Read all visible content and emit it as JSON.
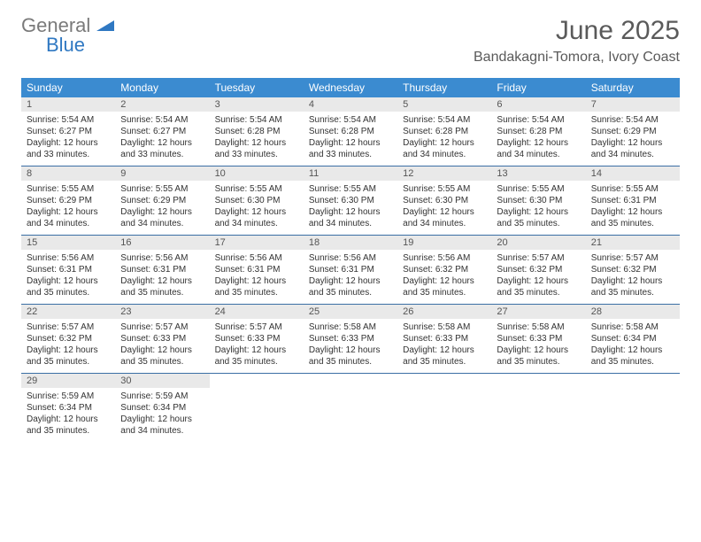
{
  "logo": {
    "general": "General",
    "blue": "Blue"
  },
  "title": "June 2025",
  "location": "Bandakagni-Tomora, Ivory Coast",
  "colors": {
    "header_bg": "#3b8bd0",
    "header_text": "#ffffff",
    "daynum_bg": "#e9e9e9",
    "border": "#3b6fa5",
    "logo_blue": "#2f78c2",
    "logo_gray": "#7a7a7a"
  },
  "day_names": [
    "Sunday",
    "Monday",
    "Tuesday",
    "Wednesday",
    "Thursday",
    "Friday",
    "Saturday"
  ],
  "weeks": [
    [
      {
        "n": "1",
        "sr": "Sunrise: 5:54 AM",
        "ss": "Sunset: 6:27 PM",
        "dl": "Daylight: 12 hours and 33 minutes."
      },
      {
        "n": "2",
        "sr": "Sunrise: 5:54 AM",
        "ss": "Sunset: 6:27 PM",
        "dl": "Daylight: 12 hours and 33 minutes."
      },
      {
        "n": "3",
        "sr": "Sunrise: 5:54 AM",
        "ss": "Sunset: 6:28 PM",
        "dl": "Daylight: 12 hours and 33 minutes."
      },
      {
        "n": "4",
        "sr": "Sunrise: 5:54 AM",
        "ss": "Sunset: 6:28 PM",
        "dl": "Daylight: 12 hours and 33 minutes."
      },
      {
        "n": "5",
        "sr": "Sunrise: 5:54 AM",
        "ss": "Sunset: 6:28 PM",
        "dl": "Daylight: 12 hours and 34 minutes."
      },
      {
        "n": "6",
        "sr": "Sunrise: 5:54 AM",
        "ss": "Sunset: 6:28 PM",
        "dl": "Daylight: 12 hours and 34 minutes."
      },
      {
        "n": "7",
        "sr": "Sunrise: 5:54 AM",
        "ss": "Sunset: 6:29 PM",
        "dl": "Daylight: 12 hours and 34 minutes."
      }
    ],
    [
      {
        "n": "8",
        "sr": "Sunrise: 5:55 AM",
        "ss": "Sunset: 6:29 PM",
        "dl": "Daylight: 12 hours and 34 minutes."
      },
      {
        "n": "9",
        "sr": "Sunrise: 5:55 AM",
        "ss": "Sunset: 6:29 PM",
        "dl": "Daylight: 12 hours and 34 minutes."
      },
      {
        "n": "10",
        "sr": "Sunrise: 5:55 AM",
        "ss": "Sunset: 6:30 PM",
        "dl": "Daylight: 12 hours and 34 minutes."
      },
      {
        "n": "11",
        "sr": "Sunrise: 5:55 AM",
        "ss": "Sunset: 6:30 PM",
        "dl": "Daylight: 12 hours and 34 minutes."
      },
      {
        "n": "12",
        "sr": "Sunrise: 5:55 AM",
        "ss": "Sunset: 6:30 PM",
        "dl": "Daylight: 12 hours and 34 minutes."
      },
      {
        "n": "13",
        "sr": "Sunrise: 5:55 AM",
        "ss": "Sunset: 6:30 PM",
        "dl": "Daylight: 12 hours and 35 minutes."
      },
      {
        "n": "14",
        "sr": "Sunrise: 5:55 AM",
        "ss": "Sunset: 6:31 PM",
        "dl": "Daylight: 12 hours and 35 minutes."
      }
    ],
    [
      {
        "n": "15",
        "sr": "Sunrise: 5:56 AM",
        "ss": "Sunset: 6:31 PM",
        "dl": "Daylight: 12 hours and 35 minutes."
      },
      {
        "n": "16",
        "sr": "Sunrise: 5:56 AM",
        "ss": "Sunset: 6:31 PM",
        "dl": "Daylight: 12 hours and 35 minutes."
      },
      {
        "n": "17",
        "sr": "Sunrise: 5:56 AM",
        "ss": "Sunset: 6:31 PM",
        "dl": "Daylight: 12 hours and 35 minutes."
      },
      {
        "n": "18",
        "sr": "Sunrise: 5:56 AM",
        "ss": "Sunset: 6:31 PM",
        "dl": "Daylight: 12 hours and 35 minutes."
      },
      {
        "n": "19",
        "sr": "Sunrise: 5:56 AM",
        "ss": "Sunset: 6:32 PM",
        "dl": "Daylight: 12 hours and 35 minutes."
      },
      {
        "n": "20",
        "sr": "Sunrise: 5:57 AM",
        "ss": "Sunset: 6:32 PM",
        "dl": "Daylight: 12 hours and 35 minutes."
      },
      {
        "n": "21",
        "sr": "Sunrise: 5:57 AM",
        "ss": "Sunset: 6:32 PM",
        "dl": "Daylight: 12 hours and 35 minutes."
      }
    ],
    [
      {
        "n": "22",
        "sr": "Sunrise: 5:57 AM",
        "ss": "Sunset: 6:32 PM",
        "dl": "Daylight: 12 hours and 35 minutes."
      },
      {
        "n": "23",
        "sr": "Sunrise: 5:57 AM",
        "ss": "Sunset: 6:33 PM",
        "dl": "Daylight: 12 hours and 35 minutes."
      },
      {
        "n": "24",
        "sr": "Sunrise: 5:57 AM",
        "ss": "Sunset: 6:33 PM",
        "dl": "Daylight: 12 hours and 35 minutes."
      },
      {
        "n": "25",
        "sr": "Sunrise: 5:58 AM",
        "ss": "Sunset: 6:33 PM",
        "dl": "Daylight: 12 hours and 35 minutes."
      },
      {
        "n": "26",
        "sr": "Sunrise: 5:58 AM",
        "ss": "Sunset: 6:33 PM",
        "dl": "Daylight: 12 hours and 35 minutes."
      },
      {
        "n": "27",
        "sr": "Sunrise: 5:58 AM",
        "ss": "Sunset: 6:33 PM",
        "dl": "Daylight: 12 hours and 35 minutes."
      },
      {
        "n": "28",
        "sr": "Sunrise: 5:58 AM",
        "ss": "Sunset: 6:34 PM",
        "dl": "Daylight: 12 hours and 35 minutes."
      }
    ],
    [
      {
        "n": "29",
        "sr": "Sunrise: 5:59 AM",
        "ss": "Sunset: 6:34 PM",
        "dl": "Daylight: 12 hours and 35 minutes."
      },
      {
        "n": "30",
        "sr": "Sunrise: 5:59 AM",
        "ss": "Sunset: 6:34 PM",
        "dl": "Daylight: 12 hours and 34 minutes."
      },
      null,
      null,
      null,
      null,
      null
    ]
  ]
}
